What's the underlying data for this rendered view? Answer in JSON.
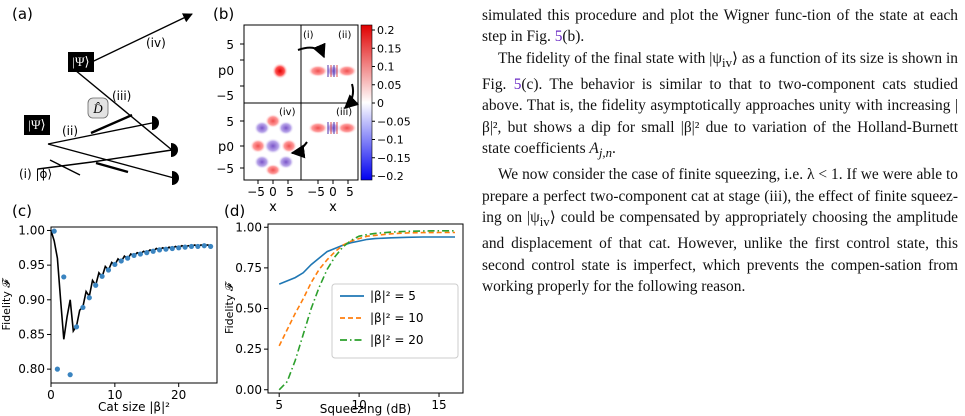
{
  "figure": {
    "panel_labels": [
      "(a)",
      "(b)",
      "(c)",
      "(d)"
    ],
    "circuit": {
      "psi_label": "|Ψ⟩",
      "d_label": "D̂",
      "phi_label": "(i) |ϕ⟩",
      "stage_labels": [
        "(ii)",
        "(iii)",
        "(iv)"
      ]
    },
    "wigner": {
      "subpanel_labels": [
        "(i)",
        "(ii)",
        "(iii)",
        "(iv)"
      ],
      "y_axis_label": "p",
      "x_axis_label": "x",
      "y_ticks": [
        "5",
        "0",
        "−5"
      ],
      "x_ticks": [
        "−5",
        "0",
        "5"
      ],
      "colorbar_ticks": [
        "0.2",
        "0.15",
        "0.1",
        "0.05",
        "0",
        "−0.05",
        "−0.1",
        "−0.15",
        "−0.2"
      ]
    }
  },
  "chart_data": [
    {
      "type": "line",
      "panel": "(c)",
      "xlabel": "Cat size |β|²",
      "ylabel": "Fidelity 𝓕",
      "xlim": [
        0,
        26
      ],
      "ylim": [
        0.78,
        1.005
      ],
      "xticks": [
        "0",
        "10",
        "20"
      ],
      "yticks": [
        "1.00",
        "0.95",
        "0.90",
        "0.85",
        "0.80"
      ],
      "series": [
        {
          "style": "line",
          "color": "#000000",
          "x": [
            0,
            0.5,
            1.0,
            1.5,
            2.0,
            2.5,
            3.0,
            3.5,
            4.0,
            4.5,
            5.0,
            5.5,
            6.0,
            6.5,
            7.0,
            7.5,
            8.0,
            8.5,
            9.0,
            9.5,
            10.0,
            10.5,
            11.0,
            11.5,
            12.0,
            12.5,
            13.0,
            13.5,
            14.0,
            14.5,
            15.0,
            15.5,
            16.0,
            16.5,
            17.0,
            17.5,
            18.0,
            18.5,
            19.0,
            19.5,
            20.0,
            20.5,
            21.0,
            21.5,
            22.0,
            22.5,
            23.0,
            23.5,
            24.0,
            24.5,
            25.0
          ],
          "y": [
            1.0,
            0.985,
            0.96,
            0.9,
            0.843,
            0.875,
            0.9,
            0.855,
            0.862,
            0.885,
            0.89,
            0.912,
            0.905,
            0.928,
            0.921,
            0.939,
            0.933,
            0.948,
            0.943,
            0.954,
            0.95,
            0.959,
            0.955,
            0.963,
            0.959,
            0.966,
            0.963,
            0.968,
            0.966,
            0.97,
            0.968,
            0.972,
            0.97,
            0.974,
            0.972,
            0.975,
            0.973,
            0.976,
            0.974,
            0.977,
            0.975,
            0.978,
            0.976,
            0.978,
            0.977,
            0.979,
            0.977,
            0.979,
            0.978,
            0.979,
            0.978
          ]
        },
        {
          "style": "markers",
          "color": "#3a84c0",
          "x": [
            0.5,
            1,
            2,
            3,
            4,
            5,
            6,
            7,
            8,
            9,
            10,
            11,
            12,
            13,
            14,
            15,
            16,
            17,
            18,
            19,
            20,
            21,
            22,
            23,
            24,
            25
          ],
          "y": [
            0.999,
            0.8,
            0.933,
            0.792,
            0.861,
            0.889,
            0.903,
            0.921,
            0.934,
            0.943,
            0.951,
            0.956,
            0.96,
            0.964,
            0.966,
            0.968,
            0.97,
            0.972,
            0.973,
            0.974,
            0.975,
            0.976,
            0.977,
            0.977,
            0.978,
            0.977
          ]
        }
      ]
    },
    {
      "type": "line",
      "panel": "(d)",
      "xlabel": "Squeezing (dB)",
      "ylabel": "Fidelity 𝓕",
      "xlim": [
        4.3,
        16.5
      ],
      "ylim": [
        -0.02,
        1.02
      ],
      "xticks": [
        "5",
        "10",
        "15"
      ],
      "yticks": [
        "1.00",
        "0.75",
        "0.50",
        "0.25",
        "0.00"
      ],
      "legend_position": "right",
      "series": [
        {
          "name": "|β|² = 5",
          "color": "#1f77b4",
          "dash": "solid",
          "x": [
            5,
            5.5,
            6,
            6.5,
            7,
            7.5,
            8,
            8.5,
            9,
            9.5,
            10,
            10.5,
            11,
            12,
            13,
            14,
            15,
            16
          ],
          "y": [
            0.65,
            0.67,
            0.69,
            0.72,
            0.77,
            0.81,
            0.85,
            0.87,
            0.89,
            0.905,
            0.915,
            0.925,
            0.93,
            0.935,
            0.938,
            0.94,
            0.94,
            0.94
          ]
        },
        {
          "name": "|β|² = 10",
          "color": "#ff7f0e",
          "dash": "dashed",
          "x": [
            5,
            5.5,
            6,
            6.5,
            7,
            7.5,
            8,
            8.5,
            9,
            9.5,
            10,
            10.5,
            11,
            12,
            13,
            14,
            15,
            16
          ],
          "y": [
            0.27,
            0.37,
            0.47,
            0.56,
            0.66,
            0.74,
            0.8,
            0.85,
            0.89,
            0.915,
            0.93,
            0.945,
            0.95,
            0.96,
            0.965,
            0.967,
            0.968,
            0.968
          ]
        },
        {
          "name": "|β|² = 20",
          "color": "#2ca02c",
          "dash": "dashdot",
          "x": [
            5,
            5.5,
            6,
            6.5,
            7,
            7.5,
            8,
            8.5,
            9,
            9.5,
            10,
            10.5,
            11,
            12,
            13,
            14,
            15,
            16
          ],
          "y": [
            0.0,
            0.05,
            0.18,
            0.34,
            0.5,
            0.63,
            0.74,
            0.82,
            0.88,
            0.92,
            0.945,
            0.955,
            0.962,
            0.97,
            0.975,
            0.977,
            0.978,
            0.978
          ]
        }
      ]
    }
  ],
  "text": {
    "p1_a": "simulated this procedure and plot the Wigner func-tion of the state at each step in Fig. ",
    "p1_ref": "5",
    "p1_b": "(b).",
    "p2_a": "The fidelity of the final state with |ψ",
    "p2_sub": "iv",
    "p2_b": "⟩ as a function of its size is shown in Fig. ",
    "p2_ref": "5",
    "p2_c": "(c). The behavior is similar to that to two-component cats studied above. That is, the fidelity asymptotically approaches unity with increasing |β|², but shows a dip for small |β|² due to variation of the Holland-Burnett state coefficients ",
    "p2_A": "A",
    "p2_Asub": "j,n",
    "p2_end": ".",
    "p3_a": "We now consider the case of finite squeezing, i.e. λ < 1. If we were able to prepare a perfect two-component cat at stage (iii), the effect of finite squeez-ing on |ψ",
    "p3_sub": "iv",
    "p3_b": "⟩ could be compensated by appropriately choosing the amplitude and displacement of that cat. However, unlike the first control state, this second control state is imperfect, which prevents the compen-sation from working properly for the following reason."
  }
}
